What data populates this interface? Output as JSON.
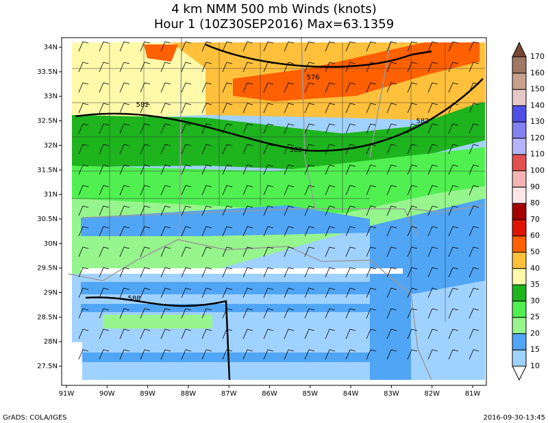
{
  "title": [
    "4 km NMM 500 mb Winds (knots)",
    "Hour 1 (10Z30SEP2016) Max=63.1359"
  ],
  "map": {
    "lat_ticks": [
      {
        "value": 34,
        "label": "34N"
      },
      {
        "value": 33.5,
        "label": "33.5N"
      },
      {
        "value": 33,
        "label": "33N"
      },
      {
        "value": 32.5,
        "label": "32.5N"
      },
      {
        "value": 32,
        "label": "32N"
      },
      {
        "value": 31.5,
        "label": "31.5N"
      },
      {
        "value": 31,
        "label": "31N"
      },
      {
        "value": 30.5,
        "label": "30.5N"
      },
      {
        "value": 30,
        "label": "30N"
      },
      {
        "value": 29.5,
        "label": "29.5N"
      },
      {
        "value": 29,
        "label": "29N"
      },
      {
        "value": 28.5,
        "label": "28.5N"
      },
      {
        "value": 28,
        "label": "28N"
      },
      {
        "value": 27.5,
        "label": "27.5N"
      }
    ],
    "lon_ticks": [
      {
        "value": -91,
        "label": "91W"
      },
      {
        "value": -90,
        "label": "90W"
      },
      {
        "value": -89,
        "label": "89W"
      },
      {
        "value": -88,
        "label": "88W"
      },
      {
        "value": -87,
        "label": "87W"
      },
      {
        "value": -86,
        "label": "86W"
      },
      {
        "value": -85,
        "label": "85W"
      },
      {
        "value": -84,
        "label": "84W"
      },
      {
        "value": -83,
        "label": "83W"
      },
      {
        "value": -82,
        "label": "82W"
      },
      {
        "value": -81,
        "label": "81W"
      }
    ],
    "contour_labels": [
      "576",
      "582",
      "582",
      "582",
      "588"
    ]
  },
  "colorbar": {
    "levels": [
      10,
      15,
      20,
      25,
      30,
      35,
      40,
      50,
      60,
      70,
      80,
      90,
      100,
      110,
      120,
      130,
      140,
      150,
      160,
      170
    ],
    "colors": [
      "#ffffff",
      "#a0d2ff",
      "#50a5f5",
      "#96f58c",
      "#50f050",
      "#1eb41e",
      "#fffaaa",
      "#ffc03c",
      "#ff6000",
      "#e11400",
      "#a50000",
      "#ffe6e6",
      "#f5b4b4",
      "#e15050",
      "#b4b4fa",
      "#8282f0",
      "#5050e6",
      "#e6c8c8",
      "#c8a08c",
      "#a07864",
      "#784632"
    ]
  },
  "footer": {
    "left": "GrADS: COLA/IGES",
    "right": "2016-09-30-13:45"
  }
}
